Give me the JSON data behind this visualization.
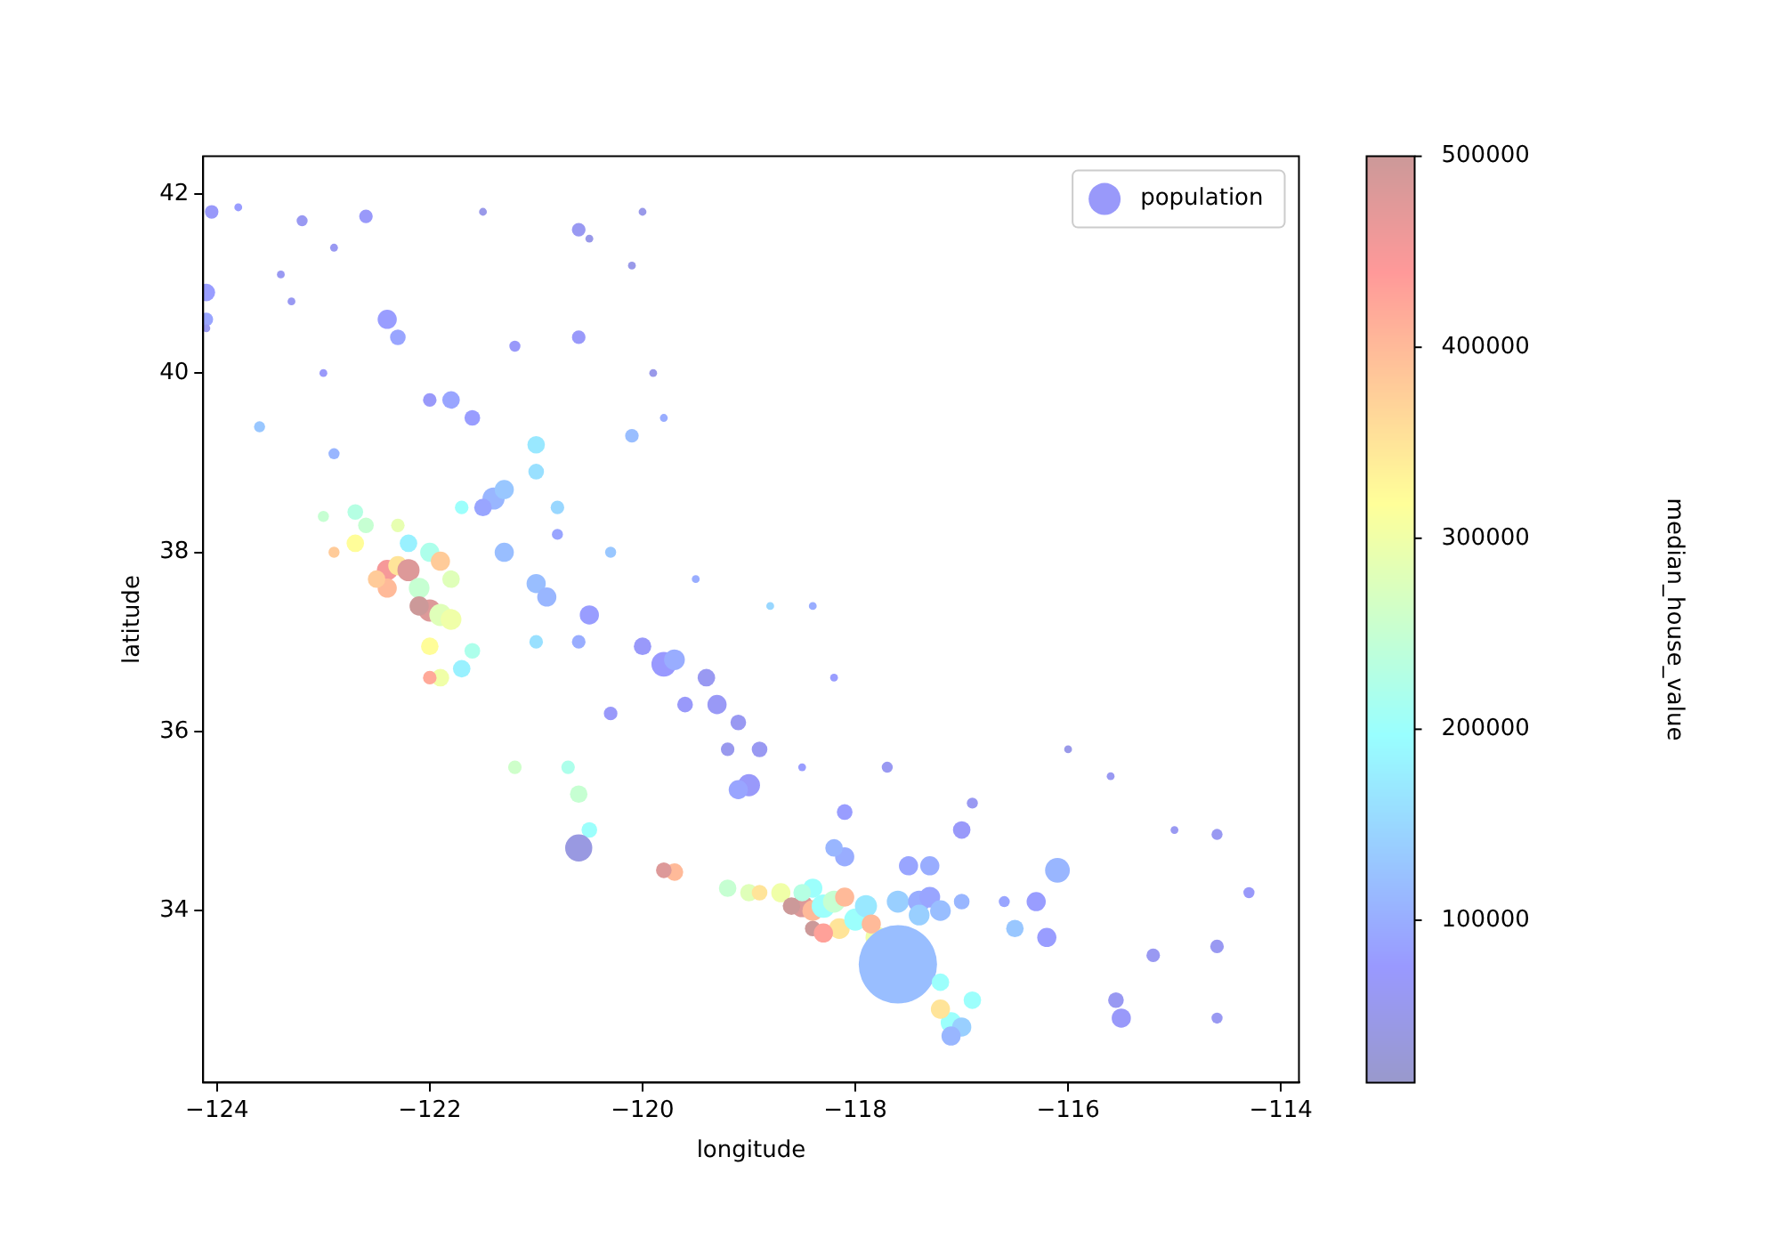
{
  "chart_data": {
    "type": "bubble",
    "xlabel": "longitude",
    "ylabel": "latitude",
    "clabel": "median_house_value",
    "legend": "top right",
    "grid": false,
    "marker": "circle",
    "xlim": [
      -124.13,
      -113.83
    ],
    "xticks": [
      -124,
      -122,
      -120,
      -118,
      -116,
      -114
    ],
    "ylim": [
      32.08,
      42.42
    ],
    "yticks": [
      34,
      36,
      38,
      40,
      42
    ],
    "clim": [
      15000,
      500000
    ],
    "cticks": [
      100000,
      200000,
      300000,
      400000,
      500000
    ],
    "series": [
      {
        "name": "population",
        "x": [
          -124.05,
          -124.1,
          -124.1,
          -123.8,
          -123.2,
          -122.6,
          -122.4,
          -122.3,
          -121.5,
          -120.5,
          -120.6,
          -121.2,
          -120.6,
          -123.3,
          -122.0,
          -121.8,
          -121.6,
          -122.9,
          -123.6,
          -123.0,
          -120.1,
          -119.8,
          -120.1,
          -123.4,
          -124.1,
          -122.9,
          -119.9,
          -120.0,
          -121.4,
          -121.3,
          -121.5,
          -121.0,
          -121.0,
          -120.8,
          -121.7,
          -122.4,
          -122.3,
          -122.2,
          -122.1,
          -122.0,
          -122.1,
          -121.9,
          -121.8,
          -122.4,
          -122.5,
          -122.7,
          -122.6,
          -122.2,
          -122.0,
          -121.9,
          -121.8,
          -122.7,
          -122.3,
          -122.0,
          -121.9,
          -121.7,
          -121.6,
          -122.0,
          -122.9,
          -123.0,
          -121.3,
          -121.0,
          -120.9,
          -120.5,
          -120.0,
          -119.8,
          -119.7,
          -119.4,
          -119.3,
          -119.6,
          -119.1,
          -119.0,
          -119.1,
          -118.9,
          -120.3,
          -119.2,
          -121.0,
          -120.6,
          -120.8,
          -118.8,
          -120.3,
          -119.5,
          -118.4,
          -118.2,
          -120.6,
          -120.5,
          -120.6,
          -121.2,
          -120.7,
          -119.7,
          -119.8,
          -119.2,
          -119.0,
          -118.5,
          -118.4,
          -118.3,
          -118.2,
          -118.15,
          -118.0,
          -117.9,
          -117.8,
          -117.85,
          -118.1,
          -118.4,
          -118.5,
          -118.7,
          -118.9,
          -118.6,
          -118.4,
          -118.3,
          -118.1,
          -118.2,
          -117.6,
          -117.4,
          -117.3,
          -117.2,
          -117.4,
          -117.5,
          -117.3,
          -117.6,
          -117.2,
          -117.1,
          -117.2,
          -117.0,
          -117.1,
          -116.9,
          -116.5,
          -116.2,
          -116.1,
          -116.3,
          -115.5,
          -115.55,
          -114.6,
          -114.6,
          -114.3,
          -114.6,
          -115.2,
          -115.6,
          -116.9,
          -117.0,
          -117.7,
          -118.1,
          -118.5,
          -117.0,
          -116.6,
          -115.0,
          -116.0
        ],
        "values": [
          41.8,
          40.9,
          40.6,
          41.85,
          41.7,
          41.75,
          40.6,
          40.4,
          41.8,
          41.5,
          41.6,
          40.3,
          40.4,
          40.8,
          39.7,
          39.7,
          39.5,
          39.1,
          39.4,
          40.0,
          39.3,
          39.5,
          41.2,
          41.1,
          40.5,
          41.4,
          40.0,
          41.8,
          38.6,
          38.7,
          38.5,
          38.9,
          39.2,
          38.5,
          38.5,
          37.8,
          37.85,
          37.8,
          37.6,
          37.35,
          37.4,
          37.3,
          37.25,
          37.6,
          37.7,
          38.1,
          38.3,
          38.1,
          38.0,
          37.9,
          37.7,
          38.45,
          38.3,
          36.95,
          36.6,
          36.7,
          36.9,
          36.6,
          38.0,
          38.4,
          38.0,
          37.65,
          37.5,
          37.3,
          36.95,
          36.75,
          36.8,
          36.6,
          36.3,
          36.3,
          36.1,
          35.4,
          35.35,
          35.8,
          36.2,
          35.8,
          37.0,
          37.0,
          38.2,
          37.4,
          38.0,
          37.7,
          37.4,
          36.6,
          35.3,
          34.9,
          34.7,
          35.6,
          35.6,
          34.43,
          34.45,
          34.25,
          34.2,
          34.05,
          34.0,
          34.05,
          34.1,
          33.8,
          33.9,
          34.05,
          33.7,
          33.85,
          34.15,
          34.25,
          34.2,
          34.2,
          34.2,
          34.05,
          33.8,
          33.75,
          34.6,
          34.7,
          34.1,
          34.1,
          34.15,
          34.0,
          33.95,
          34.5,
          34.5,
          33.4,
          33.2,
          32.75,
          32.9,
          32.7,
          32.6,
          33.0,
          33.8,
          33.7,
          34.45,
          34.1,
          32.8,
          33.0,
          34.85,
          33.6,
          34.2,
          32.8,
          33.5,
          35.5,
          35.2,
          34.9,
          35.6,
          35.1,
          35.6,
          34.1,
          34.1,
          34.9,
          35.8
        ],
        "sizes": [
          0.03,
          0.05,
          0.03,
          0.01,
          0.02,
          0.03,
          0.06,
          0.04,
          0.01,
          0.01,
          0.03,
          0.02,
          0.03,
          0.01,
          0.03,
          0.05,
          0.04,
          0.02,
          0.02,
          0.01,
          0.03,
          0.01,
          0.01,
          0.01,
          0.01,
          0.01,
          0.01,
          0.01,
          0.08,
          0.06,
          0.05,
          0.04,
          0.05,
          0.03,
          0.03,
          0.07,
          0.06,
          0.08,
          0.07,
          0.08,
          0.06,
          0.08,
          0.07,
          0.06,
          0.05,
          0.05,
          0.04,
          0.05,
          0.06,
          0.06,
          0.05,
          0.04,
          0.03,
          0.05,
          0.05,
          0.05,
          0.04,
          0.03,
          0.02,
          0.02,
          0.06,
          0.06,
          0.06,
          0.06,
          0.05,
          0.1,
          0.07,
          0.05,
          0.06,
          0.04,
          0.04,
          0.08,
          0.06,
          0.04,
          0.03,
          0.03,
          0.03,
          0.03,
          0.02,
          0.01,
          0.02,
          0.01,
          0.01,
          0.01,
          0.05,
          0.04,
          0.12,
          0.03,
          0.03,
          0.05,
          0.04,
          0.05,
          0.05,
          0.08,
          0.07,
          0.09,
          0.08,
          0.07,
          0.08,
          0.08,
          0.08,
          0.06,
          0.06,
          0.06,
          0.05,
          0.06,
          0.04,
          0.05,
          0.04,
          0.06,
          0.06,
          0.05,
          0.08,
          0.08,
          0.07,
          0.07,
          0.07,
          0.06,
          0.06,
          1,
          0.05,
          0.07,
          0.06,
          0.06,
          0.06,
          0.05,
          0.05,
          0.06,
          0.1,
          0.06,
          0.06,
          0.04,
          0.02,
          0.03,
          0.02,
          0.02,
          0.03,
          0.01,
          0.02,
          0.05,
          0.02,
          0.04,
          0.01,
          0.04,
          0.02,
          0.01,
          0.01
        ],
        "cvalues": [
          70000,
          80000,
          90000,
          80000,
          60000,
          70000,
          80000,
          90000,
          50000,
          50000,
          60000,
          70000,
          70000,
          60000,
          70000,
          90000,
          80000,
          110000,
          130000,
          70000,
          120000,
          100000,
          50000,
          60000,
          60000,
          60000,
          50000,
          50000,
          110000,
          130000,
          90000,
          160000,
          170000,
          150000,
          200000,
          450000,
          350000,
          480000,
          250000,
          480000,
          500000,
          280000,
          300000,
          400000,
          380000,
          320000,
          250000,
          180000,
          220000,
          380000,
          280000,
          230000,
          290000,
          320000,
          300000,
          180000,
          220000,
          420000,
          380000,
          250000,
          120000,
          120000,
          110000,
          80000,
          70000,
          75000,
          100000,
          60000,
          65000,
          70000,
          60000,
          70000,
          90000,
          60000,
          70000,
          55000,
          160000,
          100000,
          90000,
          150000,
          130000,
          100000,
          100000,
          80000,
          250000,
          200000,
          40000,
          260000,
          220000,
          400000,
          480000,
          250000,
          280000,
          480000,
          400000,
          200000,
          250000,
          350000,
          200000,
          170000,
          300000,
          400000,
          400000,
          200000,
          230000,
          300000,
          350000,
          500000,
          500000,
          430000,
          100000,
          110000,
          140000,
          100000,
          90000,
          120000,
          140000,
          90000,
          100000,
          120000,
          200000,
          200000,
          350000,
          140000,
          110000,
          200000,
          130000,
          80000,
          110000,
          80000,
          70000,
          60000,
          60000,
          60000,
          70000,
          60000,
          60000,
          60000,
          60000,
          70000,
          60000,
          80000,
          80000,
          110000,
          90000,
          60000,
          50000
        ]
      }
    ]
  }
}
